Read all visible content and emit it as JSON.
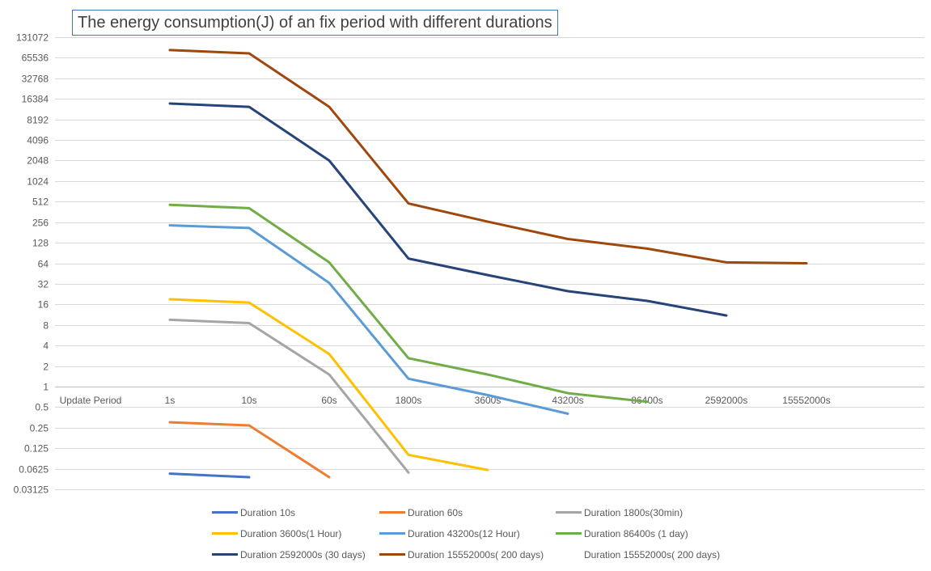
{
  "chart_data": {
    "type": "line",
    "title": "The energy consumption(J) of an fix period with different durations",
    "xlabel": "",
    "ylabel": "",
    "y_scale": "log2",
    "ylim": [
      0.03125,
      131072
    ],
    "y_ticks": [
      "131072",
      "65536",
      "32768",
      "16384",
      "8192",
      "4096",
      "2048",
      "1024",
      "512",
      "256",
      "128",
      "64",
      "32",
      "16",
      "8",
      "4",
      "2",
      "1",
      "0.5",
      "0.25",
      "0.125",
      "0.0625",
      "0.03125"
    ],
    "categories": [
      "Update Period",
      "1s",
      "10s",
      "60s",
      "1800s",
      "3600s",
      "43200s",
      "86400s",
      "2592000s",
      "15552000s"
    ],
    "grid": true,
    "legend_position": "bottom",
    "series": [
      {
        "name": "Duration 10s",
        "color": "#4472c4",
        "values": [
          null,
          0.053,
          0.047,
          null,
          null,
          null,
          null,
          null,
          null,
          null
        ]
      },
      {
        "name": "Duration 60s",
        "color": "#ed7d31",
        "values": [
          null,
          0.3,
          0.27,
          0.047,
          null,
          null,
          null,
          null,
          null,
          null
        ]
      },
      {
        "name": "Duration 1800s(30min)",
        "color": "#a5a5a5",
        "values": [
          null,
          9.5,
          8.5,
          1.5,
          0.055,
          null,
          null,
          null,
          null,
          null
        ]
      },
      {
        "name": "Duration 3600s(1 Hour)",
        "color": "#ffc000",
        "values": [
          null,
          19,
          17,
          3,
          0.1,
          0.06,
          null,
          null,
          null,
          null
        ]
      },
      {
        "name": "Duration 43200s(12 Hour)",
        "color": "#5b9bd5",
        "values": [
          null,
          230,
          210,
          33,
          1.3,
          0.75,
          0.4,
          null,
          null,
          null
        ]
      },
      {
        "name": "Duration 86400s (1 day)",
        "color": "#70ad47",
        "values": [
          null,
          460,
          410,
          66,
          2.6,
          1.5,
          0.8,
          0.6,
          null,
          null
        ]
      },
      {
        "name": "Duration 2592000s (30 days)",
        "color": "#264478",
        "values": [
          null,
          14000,
          12500,
          2048,
          75,
          43,
          25,
          18,
          11,
          null
        ]
      },
      {
        "name": "Duration 15552000s( 200 days)",
        "color": "#9e480e",
        "values": [
          null,
          85000,
          76000,
          12500,
          480,
          260,
          145,
          105,
          66,
          64
        ]
      },
      {
        "name": "Duration 15552000s( 200 days)",
        "color": "",
        "values": [
          null,
          null,
          null,
          null,
          null,
          null,
          null,
          null,
          null,
          null
        ]
      }
    ]
  }
}
